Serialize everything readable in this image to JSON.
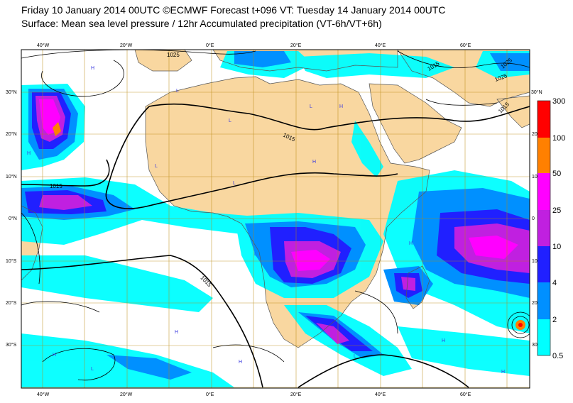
{
  "header": {
    "line1": "Friday 10 January 2014 00UTC ©ECMWF Forecast t+096 VT: Tuesday 14 January 2014 00UTC",
    "line2": "Surface: Mean sea level pressure / 12hr Accumulated precipitation (VT-6h/VT+6h)"
  },
  "map": {
    "lon_labels": [
      "40°W",
      "20°W",
      "0°E",
      "20°E",
      "40°E",
      "60°E"
    ],
    "lat_labels_left": [
      "30°N",
      "20°N",
      "10°N",
      "0°N",
      "10°S",
      "20°S",
      "30°S"
    ],
    "lat_labels_right": [
      "30°N",
      "20",
      "10",
      "0",
      "10",
      "20",
      "30"
    ],
    "isobar_labels": [
      "1025",
      "1015",
      "1015",
      "1015",
      "1015",
      "1015",
      "1025",
      "1025"
    ],
    "pressure_centers": [
      "H",
      "H",
      "H",
      "H",
      "H",
      "H",
      "H",
      "H",
      "H",
      "H",
      "L",
      "L",
      "L",
      "L",
      "L",
      "L",
      "L",
      "L"
    ],
    "colors": {
      "land": "#f9d7a0",
      "ocean": "#ffffff",
      "graticule": "#b8860b",
      "coast": "#555555",
      "isobar": "#000000"
    }
  },
  "colorbar": {
    "labels": [
      "300",
      "100",
      "50",
      "25",
      "10",
      "4",
      "2",
      "0.5"
    ],
    "colors": [
      "#ff0000",
      "#ff8000",
      "#ff00ff",
      "#c020e0",
      "#2020ff",
      "#0090ff",
      "#00ffff"
    ]
  }
}
